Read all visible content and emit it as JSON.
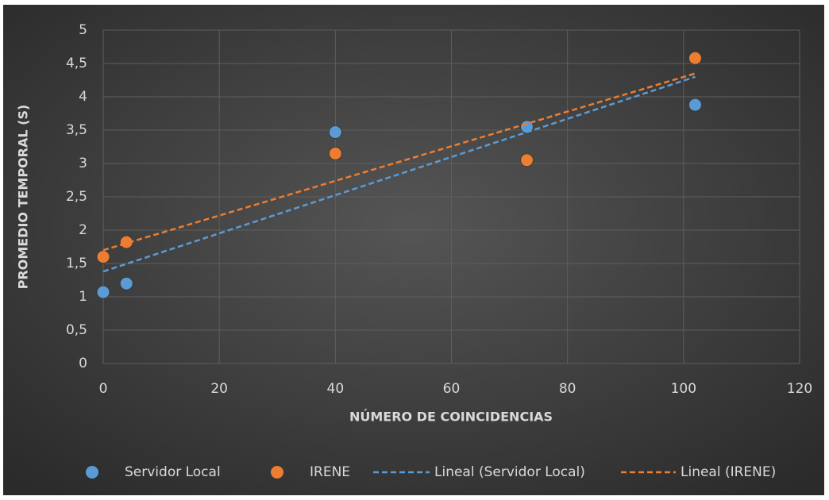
{
  "chart_data": {
    "type": "scatter",
    "x_label": "NÚMERO DE COINCIDENCIAS",
    "y_label": "PROMEDIO TEMPORAL (S)",
    "xlim": [
      0,
      120
    ],
    "xticks": [
      0,
      20,
      40,
      60,
      80,
      100,
      120
    ],
    "ylim": [
      0,
      5
    ],
    "yticks": [
      0,
      {
        "value": 0.5,
        "label": "0,5"
      },
      1,
      {
        "value": 1.5,
        "label": "1,5"
      },
      2,
      {
        "value": 2.5,
        "label": "2,5"
      },
      3,
      {
        "value": 3.5,
        "label": "3,5"
      },
      4,
      {
        "value": 4.5,
        "label": "4,5"
      },
      5
    ],
    "grid": true,
    "legend": "bottom",
    "series": [
      {
        "name": "Servidor Local",
        "color": "#5b9bd5",
        "x": [
          0,
          4,
          40,
          73,
          102
        ],
        "values": [
          1.07,
          1.2,
          3.47,
          3.55,
          3.88
        ]
      },
      {
        "name": "IRENE",
        "color": "#ed7d31",
        "x": [
          0,
          4,
          40,
          73,
          102
        ],
        "values": [
          1.6,
          1.82,
          3.15,
          3.05,
          4.58
        ]
      },
      {
        "name": "Lineal (Servidor Local)",
        "color": "#5b9bd5",
        "line_style": "dashed",
        "x": [
          0,
          102
        ],
        "values": [
          1.38,
          4.3
        ]
      },
      {
        "name": "Lineal (IRENE)",
        "color": "#ed7d31",
        "line_style": "dashed",
        "x": [
          0,
          102
        ],
        "values": [
          1.7,
          4.35
        ]
      }
    ]
  }
}
